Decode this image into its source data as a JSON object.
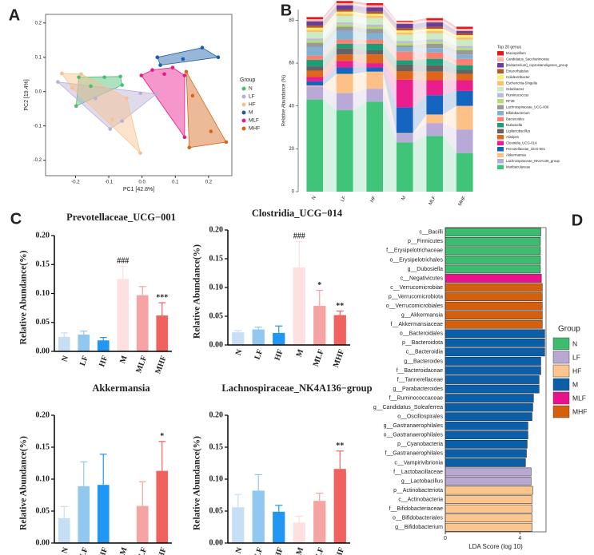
{
  "chart_data": [
    {
      "type": "scatter",
      "panel": "A",
      "xlabel": "PC1 [42.8%]",
      "ylabel": "PC2 [19.4%]",
      "legend_title": "Group",
      "xlim": [
        -0.29,
        0.27
      ],
      "ylim": [
        -0.245,
        0.225
      ],
      "xticks": [
        -0.2,
        -0.1,
        {
          "value": 0,
          "label": "0.0"
        },
        0.1,
        0.2
      ],
      "yticks": [
        -0.2,
        -0.1,
        {
          "value": 0,
          "label": "0.0"
        },
        0.1,
        0.2
      ],
      "series": [
        {
          "name": "N",
          "color": "#4dbd74",
          "x": [
            -0.19,
            -0.113,
            -0.065,
            -0.06,
            -0.198,
            -0.154
          ],
          "y": [
            0.042,
            0.042,
            0.044,
            0.019,
            -0.042,
            0.016
          ]
        },
        {
          "name": "LF",
          "color": "#b8b0d8",
          "x": [
            -0.253,
            -0.096,
            -0.005,
            0.043,
            -0.06,
            -0.14
          ],
          "y": [
            0.028,
            -0.109,
            -0.005,
            -0.007,
            -0.086,
            -0.02
          ]
        },
        {
          "name": "HF",
          "color": "#f8c18c",
          "x": [
            -0.241,
            -0.183,
            -0.089,
            -0.005,
            -0.046,
            -0.21
          ],
          "y": [
            0.053,
            0.051,
            -0.081,
            -0.179,
            -0.019,
            0.01
          ]
        },
        {
          "name": "M",
          "color": "#1a5ea8",
          "x": [
            0.046,
            0.181,
            0.229,
            0.055,
            0.123
          ],
          "y": [
            0.1,
            0.128,
            0.1,
            0.077,
            0.095
          ]
        },
        {
          "name": "MLF",
          "color": "#e8198b",
          "x": [
            -0.002,
            0.031,
            0.067,
            0.128,
            0.128,
            0.092
          ],
          "y": [
            0.047,
            0.063,
            0.051,
            0.047,
            -0.133,
            0.07
          ]
        },
        {
          "name": "MHF",
          "color": "#d7661b",
          "x": [
            0.133,
            0.142,
            0.253,
            0.207,
            0.152
          ],
          "y": [
            0.058,
            -0.163,
            -0.147,
            -0.116,
            -0.012
          ]
        }
      ]
    },
    {
      "type": "stacked",
      "panel": "B",
      "ylabel": "Relative Abundance (%)",
      "legend_title": "Top 20 genus",
      "categories": [
        "N",
        "LF",
        "HF",
        "M",
        "MLF",
        "MHF"
      ],
      "ylim": [
        0,
        85
      ],
      "yticks": [
        0,
        20,
        40,
        60,
        80
      ],
      "series": [
        {
          "name": "Mucispirillum",
          "color": "#e31a1c",
          "values": [
            1,
            1,
            1,
            0.5,
            1,
            1
          ]
        },
        {
          "name": "Candidatus_Saccharimonas",
          "color": "#fbb4ae",
          "values": [
            1,
            1,
            1,
            1,
            1,
            1
          ]
        },
        {
          "name": "[Eubacterium]_coprostanoligenes_group",
          "color": "#6a3d9a",
          "values": [
            2,
            2,
            2,
            2,
            2,
            1
          ]
        },
        {
          "name": "Enterorhabdus",
          "color": "#b15928",
          "values": [
            1,
            1,
            1,
            1,
            1,
            1
          ]
        },
        {
          "name": "Colidextribacter",
          "color": "#ffed6f",
          "values": [
            1,
            1,
            1,
            1,
            1,
            1
          ]
        },
        {
          "name": "Escherichia-Shigella",
          "color": "#fdbf6f",
          "values": [
            1,
            1,
            1,
            1,
            1,
            1
          ]
        },
        {
          "name": "Odoribacter",
          "color": "#ccebc5",
          "values": [
            3,
            3,
            3,
            3,
            3,
            3
          ]
        },
        {
          "name": "Ruminococcus",
          "color": "#bebada",
          "values": [
            1,
            1,
            1,
            1,
            1,
            1
          ]
        },
        {
          "name": "RF39",
          "color": "#b3de69",
          "values": [
            1,
            1,
            1,
            1,
            1,
            1
          ]
        },
        {
          "name": "Lachnospiraceae_UCG-006",
          "color": "#999999",
          "values": [
            2,
            2,
            2,
            1,
            2,
            2
          ]
        },
        {
          "name": "Bifidobacterium",
          "color": "#80b1d3",
          "values": [
            4,
            4,
            3,
            2,
            2,
            2
          ]
        },
        {
          "name": "Bacteroides",
          "color": "#fb8072",
          "values": [
            2,
            2,
            2,
            4,
            3,
            3
          ]
        },
        {
          "name": "Dubosiella",
          "color": "#1b9e77",
          "values": [
            3,
            2,
            3,
            2,
            3,
            2
          ]
        },
        {
          "name": "Ligilactobacillus",
          "color": "#636363",
          "values": [
            2,
            3,
            2,
            3,
            3,
            2
          ]
        },
        {
          "name": "Alistipes",
          "color": "#e0661c",
          "values": [
            3,
            3,
            4,
            4,
            4,
            3
          ]
        },
        {
          "name": "Clostridia_UCG-014",
          "color": "#e91e8c",
          "values": [
            2,
            3,
            2,
            13,
            7,
            5
          ]
        },
        {
          "name": "Prevotellaceae_UCG-001",
          "color": "#1565c0",
          "values": [
            2,
            3,
            2,
            12,
            9,
            7
          ]
        },
        {
          "name": "Akkermansia",
          "color": "#fdc086",
          "values": [
            0.5,
            9,
            8,
            0.3,
            4,
            11
          ]
        },
        {
          "name": "Lachnospiraceae_NK4A136_group",
          "color": "#b8a9d6",
          "values": [
            6,
            8,
            6,
            4,
            6,
            11
          ]
        },
        {
          "name": "Muribaculaceae",
          "color": "#40c47a",
          "values": [
            43,
            38,
            42,
            23,
            26,
            18
          ]
        }
      ]
    },
    {
      "type": "bar",
      "panel": "C",
      "title": "Prevotellaceae_UCG−001",
      "ylabel": "Relative Abundance(%)",
      "categories": [
        "N",
        "LF",
        "HF",
        "M",
        "MLF",
        "MHF"
      ],
      "colors": [
        "#c6dff5",
        "#90c8f0",
        "#2196f3",
        "#fde0e0",
        "#f5a3a3",
        "#f0625e"
      ],
      "values": [
        0.025,
        0.029,
        0.019,
        0.125,
        0.097,
        0.062
      ],
      "errors": [
        0.007,
        0.006,
        0.005,
        0.022,
        0.015,
        0.022
      ],
      "annotations": [
        null,
        null,
        null,
        "###",
        null,
        "***"
      ],
      "ylim": [
        0,
        0.2
      ],
      "yticks": [
        {
          "value": 0,
          "label": "0.00"
        },
        0.05,
        {
          "value": 0.1,
          "label": "0.10"
        },
        0.15,
        {
          "value": 0.2,
          "label": "0.20"
        }
      ]
    },
    {
      "type": "bar",
      "title": "Clostridia_UCG−014",
      "ylabel": "Relative Abundance(%)",
      "categories": [
        "N",
        "LF",
        "HF",
        "M",
        "MLF",
        "MHF"
      ],
      "colors": [
        "#c6dff5",
        "#90c8f0",
        "#2196f3",
        "#fde0e0",
        "#f5a3a3",
        "#f0625e"
      ],
      "values": [
        0.022,
        0.027,
        0.021,
        0.135,
        0.068,
        0.052
      ],
      "errors": [
        0.003,
        0.004,
        0.012,
        0.045,
        0.027,
        0.007
      ],
      "annotations": [
        null,
        null,
        null,
        "###",
        "*",
        "**"
      ],
      "ylim": [
        0,
        0.2
      ],
      "yticks": [
        {
          "value": 0,
          "label": "0.00"
        },
        0.05,
        {
          "value": 0.1,
          "label": "0.10"
        },
        0.15,
        {
          "value": 0.2,
          "label": "0.20"
        }
      ]
    },
    {
      "type": "bar",
      "title": "Akkermansia",
      "ylabel": "Relative Abundance(%)",
      "categories": [
        "N",
        "LF",
        "HF",
        "M",
        "MLF",
        "MHF"
      ],
      "colors": [
        "#c6dff5",
        "#90c8f0",
        "#2196f3",
        "#fde0e0",
        "#f5a3a3",
        "#f0625e"
      ],
      "values": [
        0.039,
        0.089,
        0.091,
        0.001,
        0.058,
        0.113
      ],
      "errors": [
        0.018,
        0.038,
        0.048,
        0,
        0.038,
        0.046
      ],
      "annotations": [
        null,
        null,
        null,
        null,
        null,
        "*"
      ],
      "ylim": [
        0,
        0.2
      ],
      "yticks": [
        {
          "value": 0,
          "label": "0.00"
        },
        0.05,
        {
          "value": 0.1,
          "label": "0.10"
        },
        0.15,
        {
          "value": 0.2,
          "label": "0.20"
        }
      ]
    },
    {
      "type": "bar",
      "title": "Lachnospiraceae_NK4A136−group",
      "ylabel": "Relative Abundance(%)",
      "categories": [
        "N",
        "LF",
        "HF",
        "M",
        "MLF",
        "MHF"
      ],
      "colors": [
        "#c6dff5",
        "#90c8f0",
        "#2196f3",
        "#fde0e0",
        "#f5a3a3",
        "#f0625e"
      ],
      "values": [
        0.056,
        0.082,
        0.049,
        0.032,
        0.066,
        0.116
      ],
      "errors": [
        0.02,
        0.025,
        0.01,
        0.01,
        0.012,
        0.028
      ],
      "annotations": [
        null,
        null,
        null,
        null,
        null,
        "**"
      ],
      "ylim": [
        0,
        0.2
      ],
      "yticks": [
        {
          "value": 0,
          "label": "0.00"
        },
        0.05,
        {
          "value": 0.1,
          "label": "0.10"
        },
        0.15,
        {
          "value": 0.2,
          "label": "0.20"
        }
      ]
    },
    {
      "type": "hbar",
      "panel": "D",
      "xlabel": "LDA Score (log 10)",
      "legend_title": "Group",
      "xlim": [
        0,
        5.4
      ],
      "xticks": [
        0,
        4
      ],
      "categories": [
        "c__Bacilli",
        "p__Firmicutes",
        "f__Erysipelotrichaceae",
        "o__Erysipelotrichales",
        "g__Dubosiella",
        "c__Negativicutes",
        "c__Verrucomicrobiae",
        "p__Verrucomicrobiota",
        "o__Verrucomicrobiales",
        "g__Akkermansia",
        "f__Akkermansiaceae",
        "o__Bacteroidales",
        "p__Bacteroidota",
        "c__Bacteroidia",
        "g__Bacteroides",
        "f__Bacteroidaceae",
        "f__Tannerellaceae",
        "g__Parabacteroides",
        "f__Ruminococcaceae",
        "g__Candidatus_Soleaferrea",
        "o__Oscillospirales",
        "g__Gastranaerophilales",
        "o__Gastranaerophilales",
        "p__Cyanobacteria",
        "f__Gastranaerophilales",
        "c__Vampirivibrionia",
        "f__Lactobacillaceae",
        "g__Lactobacillus",
        "p__Actinobacteriota",
        "c__Actinobacteria",
        "f__Bifidobacteriaceae",
        "o__Bifidobacteriales",
        "g__Bifidobacterium"
      ],
      "series": [
        {
          "name": "N",
          "color": "#3dbb6f",
          "values": [
            5.12,
            5.1,
            5.1,
            5.1,
            5.1,
            null,
            null,
            null,
            null,
            null,
            null,
            null,
            null,
            null,
            null,
            null,
            null,
            null,
            null,
            null,
            null,
            null,
            null,
            null,
            null,
            null,
            null,
            null,
            null,
            null,
            null,
            null,
            null
          ]
        },
        {
          "name": "LF",
          "color": "#b9a9d2",
          "values": [
            null,
            null,
            null,
            null,
            null,
            null,
            null,
            null,
            null,
            null,
            null,
            null,
            null,
            null,
            null,
            null,
            null,
            null,
            null,
            null,
            null,
            null,
            null,
            null,
            null,
            null,
            4.6,
            4.6,
            null,
            null,
            null,
            null,
            null
          ]
        },
        {
          "name": "HF",
          "color": "#fdc58e",
          "values": [
            null,
            null,
            null,
            null,
            null,
            null,
            null,
            null,
            null,
            null,
            null,
            null,
            null,
            null,
            null,
            null,
            null,
            null,
            null,
            null,
            null,
            null,
            null,
            null,
            null,
            null,
            null,
            null,
            4.69,
            4.65,
            4.65,
            4.65,
            4.65
          ]
        },
        {
          "name": "M",
          "color": "#0a5fa8",
          "values": [
            null,
            null,
            null,
            null,
            null,
            null,
            null,
            null,
            null,
            null,
            null,
            5.33,
            5.33,
            5.33,
            5.12,
            5.12,
            5.03,
            5.03,
            4.73,
            4.69,
            4.65,
            4.43,
            4.43,
            4.39,
            4.35,
            4.3,
            null,
            null,
            null,
            null,
            null,
            null,
            null
          ]
        },
        {
          "name": "MLF",
          "color": "#e8128c",
          "values": [
            null,
            null,
            null,
            null,
            null,
            5.15,
            null,
            null,
            null,
            null,
            null,
            null,
            null,
            null,
            null,
            null,
            null,
            null,
            null,
            null,
            null,
            null,
            null,
            null,
            null,
            null,
            null,
            null,
            null,
            null,
            null,
            null,
            null
          ]
        },
        {
          "name": "MHF",
          "color": "#d45f0c",
          "values": [
            null,
            null,
            null,
            null,
            null,
            null,
            5.2,
            5.2,
            5.2,
            5.2,
            5.2,
            null,
            null,
            null,
            null,
            null,
            null,
            null,
            null,
            null,
            null,
            null,
            null,
            null,
            null,
            null,
            null,
            null,
            null,
            null,
            null,
            null,
            null
          ]
        }
      ]
    }
  ]
}
